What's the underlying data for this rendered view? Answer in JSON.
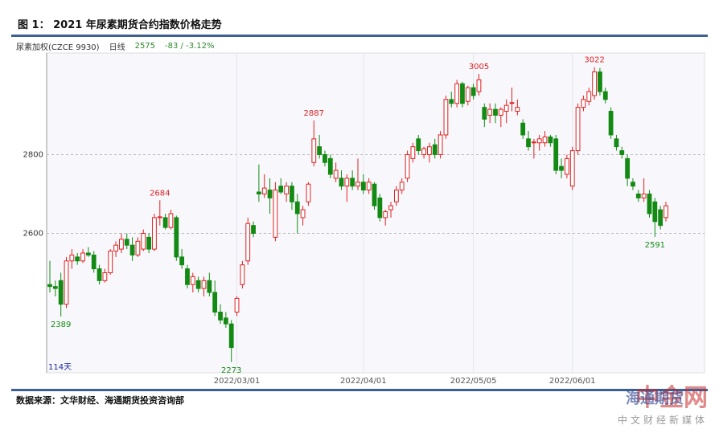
{
  "header": {
    "title": "图 1：  2021 年尿素期货合约指数价格走势"
  },
  "toolbar": {
    "symbol": "尿素加权(CZCE 9930)",
    "period": "日线",
    "last": "2575",
    "change": "-83 / -3.12%"
  },
  "source": "数据来源：文华财经、海通期货投资咨询部",
  "watermark": {
    "brand": "中金网",
    "company": "海通期货",
    "slogan": "中文财经新媒体"
  },
  "chart_data": {
    "type": "candlestick",
    "days_label": "114天",
    "up_color": "#e02020",
    "down_color": "#138a13",
    "ylim": [
      2246,
      3058
    ],
    "yticks": [
      2600,
      2800
    ],
    "grid": true,
    "categories": [
      null,
      null,
      null,
      null,
      null,
      null,
      null,
      null,
      null,
      null,
      null,
      null,
      null,
      null,
      null,
      null,
      null,
      null,
      null,
      null,
      null,
      null,
      null,
      null,
      null,
      null,
      null,
      null,
      null,
      null,
      null,
      null,
      null,
      null,
      "2022/03/01",
      null,
      null,
      null,
      null,
      null,
      null,
      null,
      null,
      null,
      null,
      null,
      null,
      null,
      null,
      null,
      null,
      null,
      null,
      null,
      null,
      null,
      null,
      "2022/04/01",
      null,
      null,
      null,
      null,
      null,
      null,
      null,
      null,
      null,
      null,
      null,
      null,
      null,
      null,
      null,
      null,
      null,
      null,
      null,
      "2022/05/05",
      null,
      null,
      null,
      null,
      null,
      null,
      null,
      null,
      null,
      null,
      null,
      null,
      null,
      null,
      null,
      null,
      null,
      "2022/06/01",
      null,
      null,
      null,
      null,
      null,
      null,
      null,
      null,
      null,
      null,
      null,
      null,
      null,
      null,
      null,
      null,
      null
    ],
    "open": [
      2470,
      2465,
      2480,
      2420,
      2530,
      2540,
      2530,
      2550,
      2545,
      2510,
      2480,
      2500,
      2555,
      2560,
      2585,
      2570,
      2545,
      2560,
      2590,
      2560,
      2640,
      2640,
      2615,
      2640,
      2540,
      2510,
      2470,
      2480,
      2460,
      2480,
      2450,
      2400,
      2385,
      2370,
      2400,
      2470,
      2530,
      2620,
      2705,
      2700,
      2710,
      2590,
      2720,
      2700,
      2720,
      2680,
      2640,
      2680,
      2780,
      2820,
      2800,
      2790,
      2740,
      2740,
      2720,
      2740,
      2720,
      2730,
      2710,
      2725,
      2690,
      2640,
      2660,
      2680,
      2710,
      2740,
      2790,
      2840,
      2800,
      2800,
      2825,
      2800,
      2850,
      2940,
      2930,
      2980,
      2935,
      2970,
      2960,
      2920,
      2900,
      2915,
      2900,
      2910,
      2930,
      2910,
      2880,
      2840,
      2830,
      2830,
      2830,
      2845,
      2840,
      2770,
      2750,
      2720,
      2810,
      2920,
      2935,
      2950,
      3010,
      2960,
      2910,
      2840,
      2810,
      2790,
      2730,
      2700,
      2690,
      2700,
      2680,
      2660,
      2640
    ],
    "high": [
      2530,
      2480,
      2500,
      2540,
      2560,
      2550,
      2560,
      2565,
      2555,
      2520,
      2510,
      2560,
      2580,
      2600,
      2600,
      2590,
      2590,
      2610,
      2600,
      2650,
      2684,
      2650,
      2660,
      2645,
      2560,
      2520,
      2500,
      2490,
      2490,
      2500,
      2480,
      2420,
      2400,
      2380,
      2440,
      2530,
      2640,
      2630,
      2775,
      2750,
      2740,
      2730,
      2740,
      2730,
      2730,
      2700,
      2670,
      2730,
      2887,
      2850,
      2810,
      2800,
      2780,
      2760,
      2750,
      2760,
      2790,
      2750,
      2740,
      2730,
      2700,
      2660,
      2680,
      2720,
      2740,
      2810,
      2830,
      2850,
      2820,
      2830,
      2840,
      2860,
      2950,
      2960,
      2990,
      2985,
      2975,
      2980,
      3005,
      2930,
      2930,
      2930,
      2920,
      2940,
      2970,
      2940,
      2890,
      2860,
      2840,
      2850,
      2860,
      2850,
      2850,
      2790,
      2800,
      2820,
      2930,
      2950,
      2970,
      3022,
      3020,
      2970,
      2920,
      2850,
      2820,
      2800,
      2740,
      2710,
      2740,
      2710,
      2690,
      2670,
      2680
    ],
    "low": [
      2450,
      2440,
      2389,
      2410,
      2510,
      2520,
      2525,
      2540,
      2500,
      2470,
      2475,
      2495,
      2540,
      2550,
      2560,
      2530,
      2540,
      2555,
      2550,
      2555,
      2620,
      2610,
      2610,
      2530,
      2510,
      2460,
      2450,
      2450,
      2440,
      2440,
      2390,
      2370,
      2360,
      2273,
      2390,
      2460,
      2520,
      2590,
      2680,
      2690,
      2650,
      2580,
      2700,
      2680,
      2660,
      2600,
      2620,
      2670,
      2770,
      2790,
      2770,
      2740,
      2730,
      2710,
      2680,
      2710,
      2710,
      2700,
      2700,
      2660,
      2630,
      2620,
      2640,
      2670,
      2700,
      2730,
      2780,
      2800,
      2790,
      2780,
      2790,
      2790,
      2840,
      2920,
      2920,
      2920,
      2925,
      2940,
      2950,
      2870,
      2880,
      2880,
      2870,
      2880,
      2910,
      2900,
      2840,
      2810,
      2790,
      2810,
      2820,
      2820,
      2750,
      2740,
      2740,
      2710,
      2800,
      2910,
      2925,
      2940,
      2950,
      2930,
      2840,
      2810,
      2790,
      2720,
      2710,
      2680,
      2680,
      2640,
      2591,
      2610,
      2630
    ],
    "close": [
      2465,
      2460,
      2420,
      2530,
      2545,
      2530,
      2550,
      2545,
      2510,
      2480,
      2500,
      2555,
      2570,
      2585,
      2570,
      2545,
      2580,
      2600,
      2560,
      2640,
      2642,
      2615,
      2650,
      2540,
      2520,
      2470,
      2490,
      2460,
      2480,
      2450,
      2400,
      2380,
      2370,
      2310,
      2435,
      2520,
      2625,
      2600,
      2700,
      2715,
      2690,
      2710,
      2705,
      2720,
      2680,
      2650,
      2660,
      2725,
      2840,
      2800,
      2780,
      2750,
      2760,
      2720,
      2740,
      2720,
      2730,
      2710,
      2730,
      2670,
      2640,
      2655,
      2670,
      2710,
      2730,
      2800,
      2820,
      2810,
      2815,
      2820,
      2800,
      2850,
      2940,
      2930,
      2980,
      2930,
      2970,
      2950,
      2990,
      2890,
      2915,
      2900,
      2915,
      2925,
      2932,
      2920,
      2850,
      2820,
      2832,
      2840,
      2845,
      2830,
      2760,
      2760,
      2790,
      2810,
      2920,
      2940,
      2960,
      3010,
      2960,
      2940,
      2850,
      2820,
      2800,
      2740,
      2720,
      2690,
      2700,
      2650,
      2630,
      2620,
      2670
    ]
  }
}
